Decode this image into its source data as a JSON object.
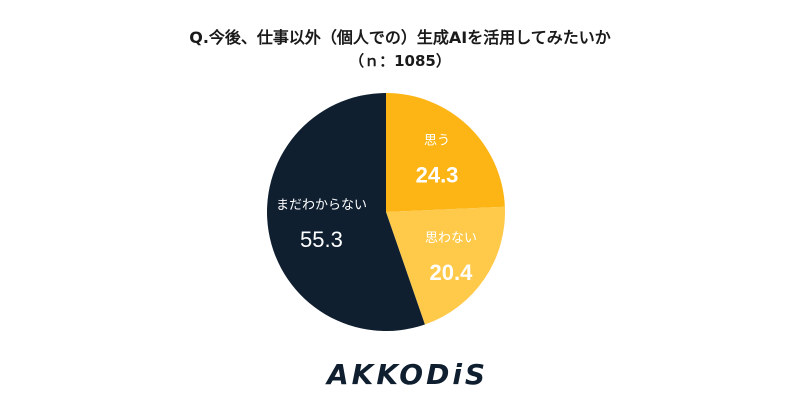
{
  "title": "Q.今後、仕事以外（個人での）生成AIを活用してみたいか",
  "subtitle": "（ｎ：1085）",
  "logo_text": "AKKODiS",
  "chart_data": {
    "type": "pie",
    "title": "Q.今後、仕事以外（個人での）生成AIを活用してみたいか",
    "subtitle": "（ｎ：1085）",
    "start": "12 o'clock, clockwise",
    "slices": [
      {
        "label": "思う",
        "value": 24.3,
        "color": "#FDB515",
        "text_color": "#ffffff"
      },
      {
        "label": "思わない",
        "value": 20.4,
        "color": "#FFC94A",
        "text_color": "#ffffff"
      },
      {
        "label": "まだわからない",
        "value": 55.3,
        "color": "#0F1F30",
        "text_color": "#ffffff"
      }
    ]
  },
  "colors": {
    "navy": "#0F1F30",
    "gold": "#FDB515",
    "light_gold": "#FFC94A"
  }
}
